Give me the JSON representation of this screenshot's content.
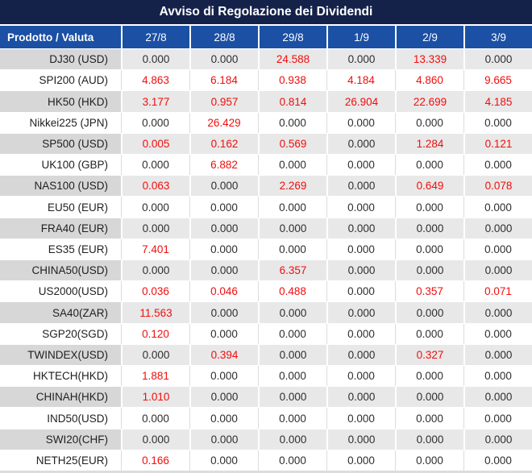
{
  "title": "Avviso di Regolazione dei Dividendi",
  "colors": {
    "title_bar_bg": "#14224a",
    "header_bg": "#1b50a4",
    "stripe_product_bg": "#d7d7d7",
    "stripe_value_bg": "#e8e8e8",
    "zero_text": "#2e2e2e",
    "nonzero_text": "#f20d0d",
    "white_row_divider": "#dcdcdc"
  },
  "table": {
    "product_header": "Prodotto / Valuta",
    "date_columns": [
      "27/8",
      "28/8",
      "29/8",
      "1/9",
      "2/9",
      "3/9"
    ],
    "rows": [
      {
        "product": "DJ30 (USD)",
        "values": [
          "0.000",
          "0.000",
          "24.588",
          "0.000",
          "13.339",
          "0.000"
        ]
      },
      {
        "product": "SPI200 (AUD)",
        "values": [
          "4.863",
          "6.184",
          "0.938",
          "4.184",
          "4.860",
          "9.665"
        ]
      },
      {
        "product": "HK50 (HKD)",
        "values": [
          "3.177",
          "0.957",
          "0.814",
          "26.904",
          "22.699",
          "4.185"
        ]
      },
      {
        "product": "Nikkei225 (JPN)",
        "values": [
          "0.000",
          "26.429",
          "0.000",
          "0.000",
          "0.000",
          "0.000"
        ]
      },
      {
        "product": "SP500 (USD)",
        "values": [
          "0.005",
          "0.162",
          "0.569",
          "0.000",
          "1.284",
          "0.121"
        ]
      },
      {
        "product": "UK100 (GBP)",
        "values": [
          "0.000",
          "6.882",
          "0.000",
          "0.000",
          "0.000",
          "0.000"
        ]
      },
      {
        "product": "NAS100 (USD)",
        "values": [
          "0.063",
          "0.000",
          "2.269",
          "0.000",
          "0.649",
          "0.078"
        ]
      },
      {
        "product": "EU50 (EUR)",
        "values": [
          "0.000",
          "0.000",
          "0.000",
          "0.000",
          "0.000",
          "0.000"
        ]
      },
      {
        "product": "FRA40 (EUR)",
        "values": [
          "0.000",
          "0.000",
          "0.000",
          "0.000",
          "0.000",
          "0.000"
        ]
      },
      {
        "product": "ES35 (EUR)",
        "values": [
          "7.401",
          "0.000",
          "0.000",
          "0.000",
          "0.000",
          "0.000"
        ]
      },
      {
        "product": "CHINA50(USD)",
        "values": [
          "0.000",
          "0.000",
          "6.357",
          "0.000",
          "0.000",
          "0.000"
        ]
      },
      {
        "product": "US2000(USD)",
        "values": [
          "0.036",
          "0.046",
          "0.488",
          "0.000",
          "0.357",
          "0.071"
        ]
      },
      {
        "product": "SA40(ZAR)",
        "values": [
          "11.563",
          "0.000",
          "0.000",
          "0.000",
          "0.000",
          "0.000"
        ]
      },
      {
        "product": "SGP20(SGD)",
        "values": [
          "0.120",
          "0.000",
          "0.000",
          "0.000",
          "0.000",
          "0.000"
        ]
      },
      {
        "product": "TWINDEX(USD)",
        "values": [
          "0.000",
          "0.394",
          "0.000",
          "0.000",
          "0.327",
          "0.000"
        ]
      },
      {
        "product": "HKTECH(HKD)",
        "values": [
          "1.881",
          "0.000",
          "0.000",
          "0.000",
          "0.000",
          "0.000"
        ]
      },
      {
        "product": "CHINAH(HKD)",
        "values": [
          "1.010",
          "0.000",
          "0.000",
          "0.000",
          "0.000",
          "0.000"
        ]
      },
      {
        "product": "IND50(USD)",
        "values": [
          "0.000",
          "0.000",
          "0.000",
          "0.000",
          "0.000",
          "0.000"
        ]
      },
      {
        "product": "SWI20(CHF)",
        "values": [
          "0.000",
          "0.000",
          "0.000",
          "0.000",
          "0.000",
          "0.000"
        ]
      },
      {
        "product": "NETH25(EUR)",
        "values": [
          "0.166",
          "0.000",
          "0.000",
          "0.000",
          "0.000",
          "0.000"
        ]
      }
    ]
  }
}
